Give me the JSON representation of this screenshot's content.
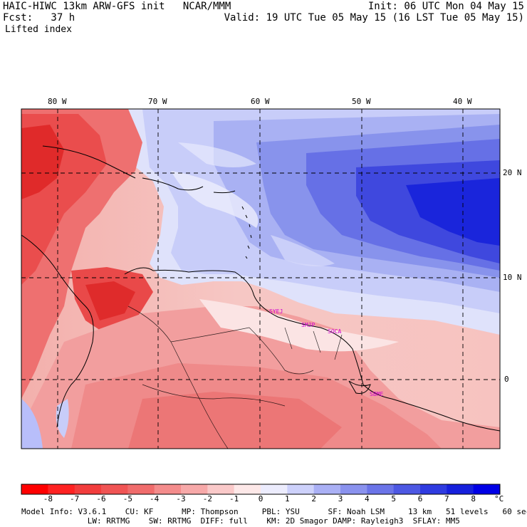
{
  "header": {
    "line1_left": "HAIC-HIWC 13km ARW-GFS init   NCAR/MMM",
    "line2_left": "Fcst:   37 h",
    "line3_left": "Lifted index",
    "init_text": "Init: 06 UTC Mon 04 May 15",
    "valid_text": "Valid: 19 UTC Tue 05 May 15 (16 LST Tue 05 May 15)"
  },
  "map": {
    "region": "Caribbean / northern South America",
    "lon_labels": [
      "80 W",
      "70 W",
      "60 W",
      "50 W",
      "40 W"
    ],
    "lat_labels": [
      "20 N",
      "10 N",
      "0"
    ],
    "stations": [
      "SYEJ",
      "SMJP",
      "SOCA",
      "SBME"
    ],
    "grid": true,
    "grid_style": "dashed"
  },
  "colorbar": {
    "levels": [
      "-8",
      "-7",
      "-6",
      "-5",
      "-4",
      "-3",
      "-2",
      "-1",
      "0",
      "1",
      "2",
      "3",
      "4",
      "5",
      "6",
      "7",
      "8"
    ],
    "unit": "°C",
    "colors": [
      "#ff0000",
      "#ff2222",
      "#f23d3d",
      "#f05454",
      "#f06c6c",
      "#f48c8c",
      "#f7a9a9",
      "#fac9c9",
      "#fde8e8",
      "#ececfd",
      "#cdd1fb",
      "#aab0f5",
      "#8a92ee",
      "#6b74e8",
      "#4d58e3",
      "#2f3be0",
      "#1620dc",
      "#0000e6"
    ]
  },
  "footer": {
    "line1": "Model Info: V3.6.1    CU: KF      MP: Thompson     PBL: YSU      SF: Noah LSM     13 km   51 levels   60 sec",
    "line2": "              LW: RRTMG    SW: RRTMG  DIFF: full    KM: 2D Smagor DAMP: Rayleigh3  SFLAY: MM5"
  }
}
